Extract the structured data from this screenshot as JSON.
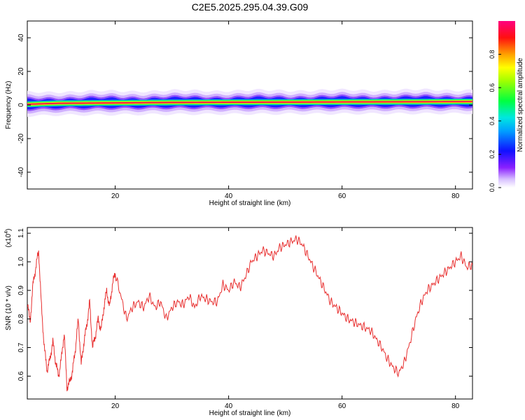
{
  "title": "C2E5.2025.295.04.39.G09",
  "chart_data": [
    {
      "type": "heatmap",
      "xlabel": "Height of straight line (km)",
      "ylabel": "Frequency (Hz)",
      "xlim": [
        4.5,
        83
      ],
      "ylim": [
        -50,
        50
      ],
      "xticks": [
        20,
        40,
        60,
        80
      ],
      "yticks": [
        -40,
        -20,
        0,
        20,
        40
      ],
      "colorbar": {
        "label": "Normalized spectral amplitude",
        "range": [
          0,
          1
        ],
        "ticks": [
          "0.0",
          "0.2",
          "0.4",
          "0.6",
          "0.8"
        ],
        "colormap": [
          "#ffffff",
          "#c8a8ff",
          "#6a00ff",
          "#0000ff",
          "#00c8ff",
          "#00ff40",
          "#ffff00",
          "#ff8000",
          "#ff0000",
          "#ff0080"
        ]
      },
      "ridge": {
        "description_free": true,
        "frequency_center_hz": [
          0.5,
          1.0,
          1.5,
          1.8,
          2.0
        ],
        "height_km": [
          5,
          10,
          30,
          60,
          82
        ]
      }
    },
    {
      "type": "line",
      "xlabel": "Height of straight line (km)",
      "ylabel": "SNR (10 * v/v)",
      "yscale_label": "(x10",
      "yscale_exp": "4",
      "xlim": [
        4.5,
        83
      ],
      "ylim": [
        0.52,
        1.12
      ],
      "xticks": [
        20,
        40,
        60,
        80
      ],
      "yticks": [
        "0.6",
        "0.7",
        "0.8",
        "0.9",
        "1.0",
        "1.1"
      ],
      "color": "#e83030",
      "x": [
        4.5,
        5,
        5.5,
        6,
        6.5,
        7,
        7.5,
        8,
        8.5,
        9,
        9.5,
        10,
        10.5,
        11,
        11.5,
        12,
        12.5,
        13,
        13.5,
        14,
        14.5,
        15,
        15.5,
        16,
        16.5,
        17,
        17.5,
        18,
        18.5,
        19,
        19.5,
        20,
        21,
        22,
        23,
        24,
        25,
        26,
        27,
        28,
        29,
        30,
        31,
        32,
        33,
        34,
        35,
        36,
        37,
        38,
        39,
        40,
        41,
        42,
        43,
        44,
        45,
        46,
        47,
        48,
        49,
        50,
        51,
        52,
        53,
        54,
        55,
        56,
        57,
        58,
        59,
        60,
        61,
        62,
        63,
        64,
        65,
        66,
        67,
        68,
        69,
        70,
        71,
        72,
        73,
        74,
        75,
        76,
        77,
        78,
        79,
        80,
        81,
        82,
        83
      ],
      "y": [
        0.86,
        0.79,
        0.92,
        0.98,
        1.04,
        0.84,
        0.7,
        0.62,
        0.66,
        0.72,
        0.65,
        0.6,
        0.66,
        0.75,
        0.56,
        0.58,
        0.62,
        0.7,
        0.8,
        0.64,
        0.72,
        0.78,
        0.86,
        0.7,
        0.74,
        0.8,
        0.76,
        0.84,
        0.9,
        0.84,
        0.92,
        0.96,
        0.88,
        0.8,
        0.84,
        0.86,
        0.84,
        0.88,
        0.84,
        0.86,
        0.8,
        0.84,
        0.86,
        0.85,
        0.88,
        0.84,
        0.88,
        0.87,
        0.86,
        0.86,
        0.92,
        0.9,
        0.93,
        0.91,
        0.95,
        1.0,
        1.02,
        1.04,
        1.03,
        1.02,
        1.05,
        1.06,
        1.07,
        1.08,
        1.06,
        1.02,
        0.98,
        0.94,
        0.9,
        0.86,
        0.84,
        0.82,
        0.8,
        0.79,
        0.78,
        0.77,
        0.76,
        0.73,
        0.7,
        0.66,
        0.63,
        0.61,
        0.65,
        0.72,
        0.8,
        0.86,
        0.9,
        0.92,
        0.94,
        0.96,
        0.98,
        1.0,
        1.02,
        0.98,
        0.99
      ]
    }
  ]
}
